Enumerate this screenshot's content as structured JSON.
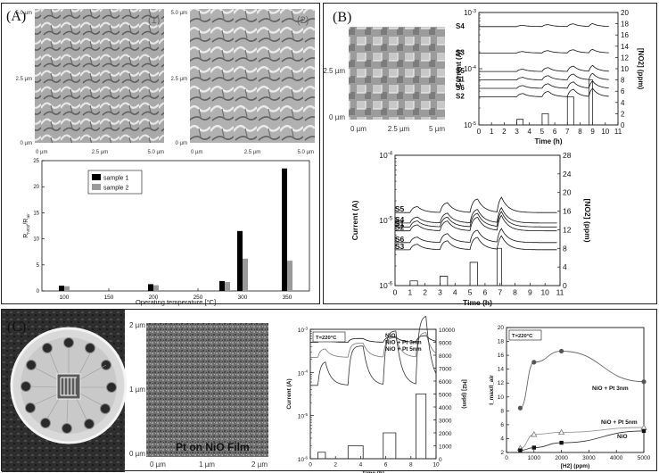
{
  "panel_a": {
    "tag": "(A)",
    "afm1": {
      "index": "(1)",
      "y_labels": [
        "5.0 µm",
        "2.5 µm",
        "0 µm"
      ],
      "x_labels": [
        "0 µm",
        "2.5 µm",
        "5.0 µm"
      ]
    },
    "afm2": {
      "index": "(2)",
      "y_labels": [
        "5.0 µm",
        "2.5 µm",
        "0 µm"
      ],
      "x_labels": [
        "0 µm",
        "2.5 µm",
        "5.0 µm"
      ]
    }
  },
  "panel_b": {
    "tag": "(B)",
    "afm": {
      "y_labels": [
        "2.5 µm",
        "0 µm"
      ],
      "x_labels": [
        "0 µm",
        "2.5 µm",
        "5 µm"
      ]
    }
  },
  "panel_c": {
    "tag": "(C)",
    "afm": {
      "caption": "Pt on NiO Film",
      "y_labels": [
        "2 µm",
        "1 µm",
        "0 µm"
      ],
      "x_labels": [
        "0 µm",
        "1 µm",
        "2 µm"
      ]
    }
  },
  "chart_data": [
    {
      "id": "a_bar",
      "type": "bar",
      "xlabel": "Operating temperature [°C]",
      "ylabel": "R_NO2/R_air",
      "categories": [
        "100",
        "150",
        "200",
        "250",
        "300",
        "350"
      ],
      "series": [
        {
          "name": "sample 1",
          "color": "#000000",
          "values": [
            1.0,
            0,
            1.3,
            0,
            11.5,
            23.5
          ]
        },
        {
          "name": "sample 2",
          "color": "#9a9a9a",
          "values": [
            0.9,
            0,
            1.1,
            0,
            6.2,
            5.8
          ]
        }
      ],
      "extra_bars": [
        {
          "at": 280,
          "s1": 1.9,
          "s2": 1.7
        }
      ],
      "ylim": [
        0,
        25
      ],
      "yticks": [
        0,
        5,
        10,
        15,
        20,
        25
      ],
      "legend": "top-left"
    },
    {
      "id": "b_top",
      "type": "line",
      "xlabel": "Time (h)",
      "ylabel": "Current (A)",
      "y2label": "[NO2] (ppm)",
      "xlim": [
        0,
        11
      ],
      "xticks": [
        0,
        1,
        2,
        3,
        4,
        5,
        6,
        7,
        8,
        9,
        10,
        11
      ],
      "ylog": [
        -5,
        -3
      ],
      "ytick_labels": [
        "10",
        "10",
        "10"
      ],
      "ytick_exponents": [
        "-3",
        "-4",
        "-5"
      ],
      "y2lim": [
        0,
        20
      ],
      "y2ticks": [
        0,
        2,
        4,
        6,
        8,
        10,
        12,
        14,
        16,
        18,
        20
      ],
      "series": [
        {
          "name": "S4",
          "base": -3.25,
          "amp": 0.05
        },
        {
          "name": "S3",
          "base": -3.72,
          "amp": 0.06
        },
        {
          "name": "S5",
          "base": -4.05,
          "amp": 0.1
        },
        {
          "name": "S1",
          "base": -4.2,
          "amp": 0.11
        },
        {
          "name": "S6",
          "base": -4.35,
          "amp": 0.12
        },
        {
          "name": "S2",
          "base": -4.5,
          "amp": 0.14
        }
      ],
      "pulses": [
        [
          3,
          3.5,
          1
        ],
        [
          5,
          5.5,
          2
        ],
        [
          7,
          7.5,
          5
        ],
        [
          8.7,
          9,
          8
        ]
      ]
    },
    {
      "id": "b_bottom",
      "type": "line",
      "xlabel": "Time (h)",
      "ylabel": "Current (A)",
      "y2label": "[NO2] (ppm)",
      "xlim": [
        0,
        11
      ],
      "xticks": [
        0,
        1,
        2,
        3,
        4,
        5,
        6,
        7,
        8,
        9,
        10,
        11
      ],
      "ylog": [
        -6,
        -4
      ],
      "ytick_labels": [
        "10",
        "10",
        "10"
      ],
      "ytick_exponents": [
        "-4",
        "-5",
        "-6"
      ],
      "y2lim": [
        0,
        28
      ],
      "y2ticks": [
        0,
        4,
        8,
        12,
        16,
        20,
        24,
        28
      ],
      "series": [
        {
          "name": "S5",
          "base": -4.88,
          "amp": 0.22
        },
        {
          "name": "S4",
          "base": -5.04,
          "amp": 0.22
        },
        {
          "name": "S1",
          "base": -5.1,
          "amp": 0.22
        },
        {
          "name": "S2",
          "base": -5.16,
          "amp": 0.22
        },
        {
          "name": "S6",
          "base": -5.34,
          "amp": 0.2
        },
        {
          "name": "S3",
          "base": -5.45,
          "amp": 0.2
        }
      ],
      "pulses": [
        [
          1,
          1.5,
          1
        ],
        [
          3,
          3.5,
          2
        ],
        [
          5,
          5.5,
          5
        ],
        [
          6.8,
          7.1,
          8
        ]
      ]
    },
    {
      "id": "c_time",
      "type": "line",
      "annotation": "T=220°C",
      "xlabel": "Time (h)",
      "ylabel": "Current (A)",
      "y2label": "[H2] (ppm)",
      "xlim": [
        0,
        10
      ],
      "xticks": [
        0,
        2,
        4,
        6,
        8,
        10
      ],
      "ylog": [
        -6,
        -3
      ],
      "ytick_labels": [
        "10",
        "10",
        "10",
        "10"
      ],
      "ytick_exponents": [
        "-3",
        "-4",
        "-5",
        "-6"
      ],
      "y2lim": [
        0,
        10000
      ],
      "y2ticks": [
        0,
        1000,
        2000,
        3000,
        4000,
        5000,
        6000,
        7000,
        8000,
        9000,
        10000
      ],
      "series": [
        {
          "name": "NiO",
          "base": -3.3,
          "amp": 0.12
        },
        {
          "name": "NiO + Pt 3nm",
          "base": -3.65,
          "amp": 0.45
        },
        {
          "name": "NiO + Pt 5nm",
          "base": -4.3,
          "amp": 1.25
        }
      ],
      "pulses": [
        [
          0.6,
          1.2,
          500
        ],
        [
          3,
          4.2,
          1000
        ],
        [
          5.8,
          6.8,
          2000
        ],
        [
          8.4,
          9.2,
          5000
        ]
      ]
    },
    {
      "id": "c_response",
      "type": "scatter",
      "annotation": "T=220°C",
      "xlabel": "[H2] (ppm)",
      "ylabel": "I_max/I_air",
      "xlim": [
        0,
        5000
      ],
      "xticks": [
        0,
        1000,
        2000,
        3000,
        4000,
        5000
      ],
      "ylim": [
        2,
        20
      ],
      "yticks": [
        2,
        4,
        6,
        8,
        10,
        12,
        14,
        16,
        18,
        20
      ],
      "series": [
        {
          "name": "NiO + Pt 3nm",
          "marker": "circle",
          "x": [
            500,
            1000,
            2000,
            5000
          ],
          "y": [
            8.4,
            15,
            16.6,
            12.2
          ]
        },
        {
          "name": "NiO + Pt 5nm",
          "marker": "triangle",
          "x": [
            500,
            1000,
            2000,
            5000
          ],
          "y": [
            2.6,
            4.6,
            4.9,
            5.6
          ]
        },
        {
          "name": "NiO",
          "marker": "square",
          "x": [
            500,
            1000,
            2000,
            5000
          ],
          "y": [
            2.3,
            2.7,
            3.4,
            5.1
          ]
        }
      ]
    }
  ]
}
